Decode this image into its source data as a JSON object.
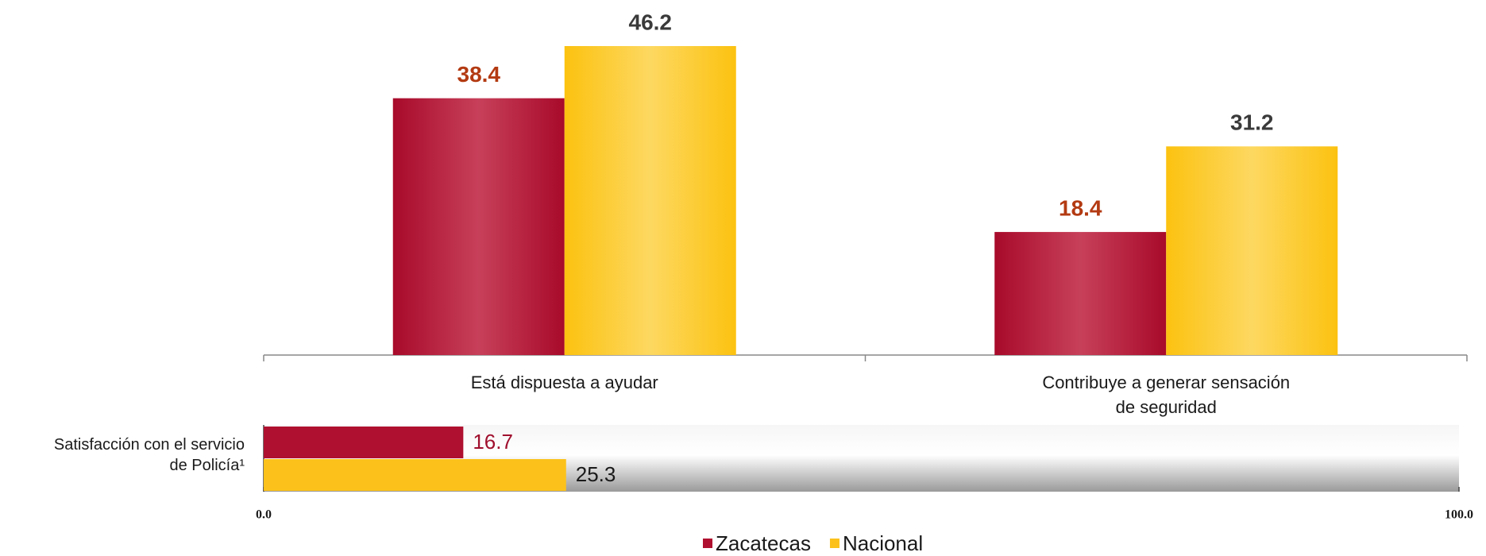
{
  "chart_data": [
    {
      "type": "bar",
      "categories": [
        "Está dispuesta a ayudar",
        "Contribuye a generar sensación de seguridad"
      ],
      "series": [
        {
          "name": "Zacatecas",
          "color": "#b0102f",
          "label_color": "#b33a12",
          "values": [
            38.4,
            18.4
          ]
        },
        {
          "name": "Nacional",
          "color": "#fcc21b",
          "label_color": "#3a3a3a",
          "values": [
            46.2,
            31.2
          ]
        }
      ]
    },
    {
      "type": "hbar",
      "categories": [
        "Satisfacción con el servicio de Policía¹"
      ],
      "series": [
        {
          "name": "Zacatecas",
          "color": "#b0102f",
          "label_color": "#a0102e",
          "values": [
            16.7
          ]
        },
        {
          "name": "Nacional",
          "color": "#fcc21b",
          "label_color": "#1a1a1a",
          "values": [
            25.3
          ]
        }
      ],
      "xlim": [
        0,
        100
      ],
      "xticks": [
        {
          "value": 0,
          "label": "0.0"
        },
        {
          "value": 100,
          "label": "100.0"
        }
      ]
    }
  ]
}
